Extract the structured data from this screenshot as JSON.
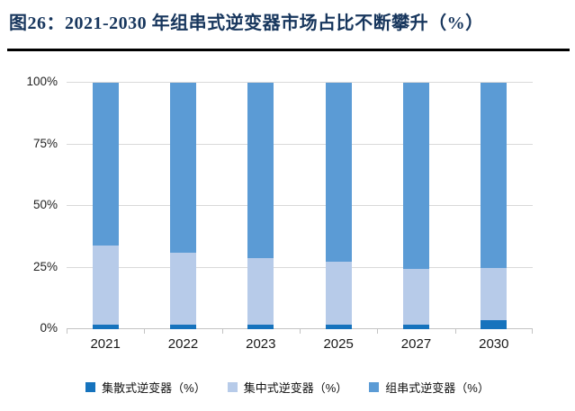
{
  "figure": {
    "title": "图26：2021-2030 年组串式逆变器市场占比不断攀升（%）",
    "title_color": "#17365D"
  },
  "chart_data": {
    "type": "bar",
    "stacked": true,
    "title": "2021-2030 年组串式逆变器市场占比不断攀升（%）",
    "categories": [
      "2021",
      "2022",
      "2023",
      "2025",
      "2027",
      "2030"
    ],
    "series": [
      {
        "name": "集散式逆变器（%）",
        "color": "#1673BD",
        "values": [
          2,
          2,
          2,
          2,
          2,
          3.5
        ]
      },
      {
        "name": "集中式逆变器（%）",
        "color": "#B7CBE9",
        "values": [
          32,
          29,
          27,
          25.5,
          22.5,
          21.5
        ]
      },
      {
        "name": "组串式逆变器（%）",
        "color": "#5B9BD5",
        "values": [
          66,
          69,
          71,
          72.5,
          75.5,
          75
        ]
      }
    ],
    "xlabel": "",
    "ylabel": "",
    "ylim": [
      0,
      100
    ],
    "yticks": [
      "0%",
      "25%",
      "50%",
      "75%",
      "100%"
    ],
    "grid": true,
    "legend_position": "bottom"
  }
}
